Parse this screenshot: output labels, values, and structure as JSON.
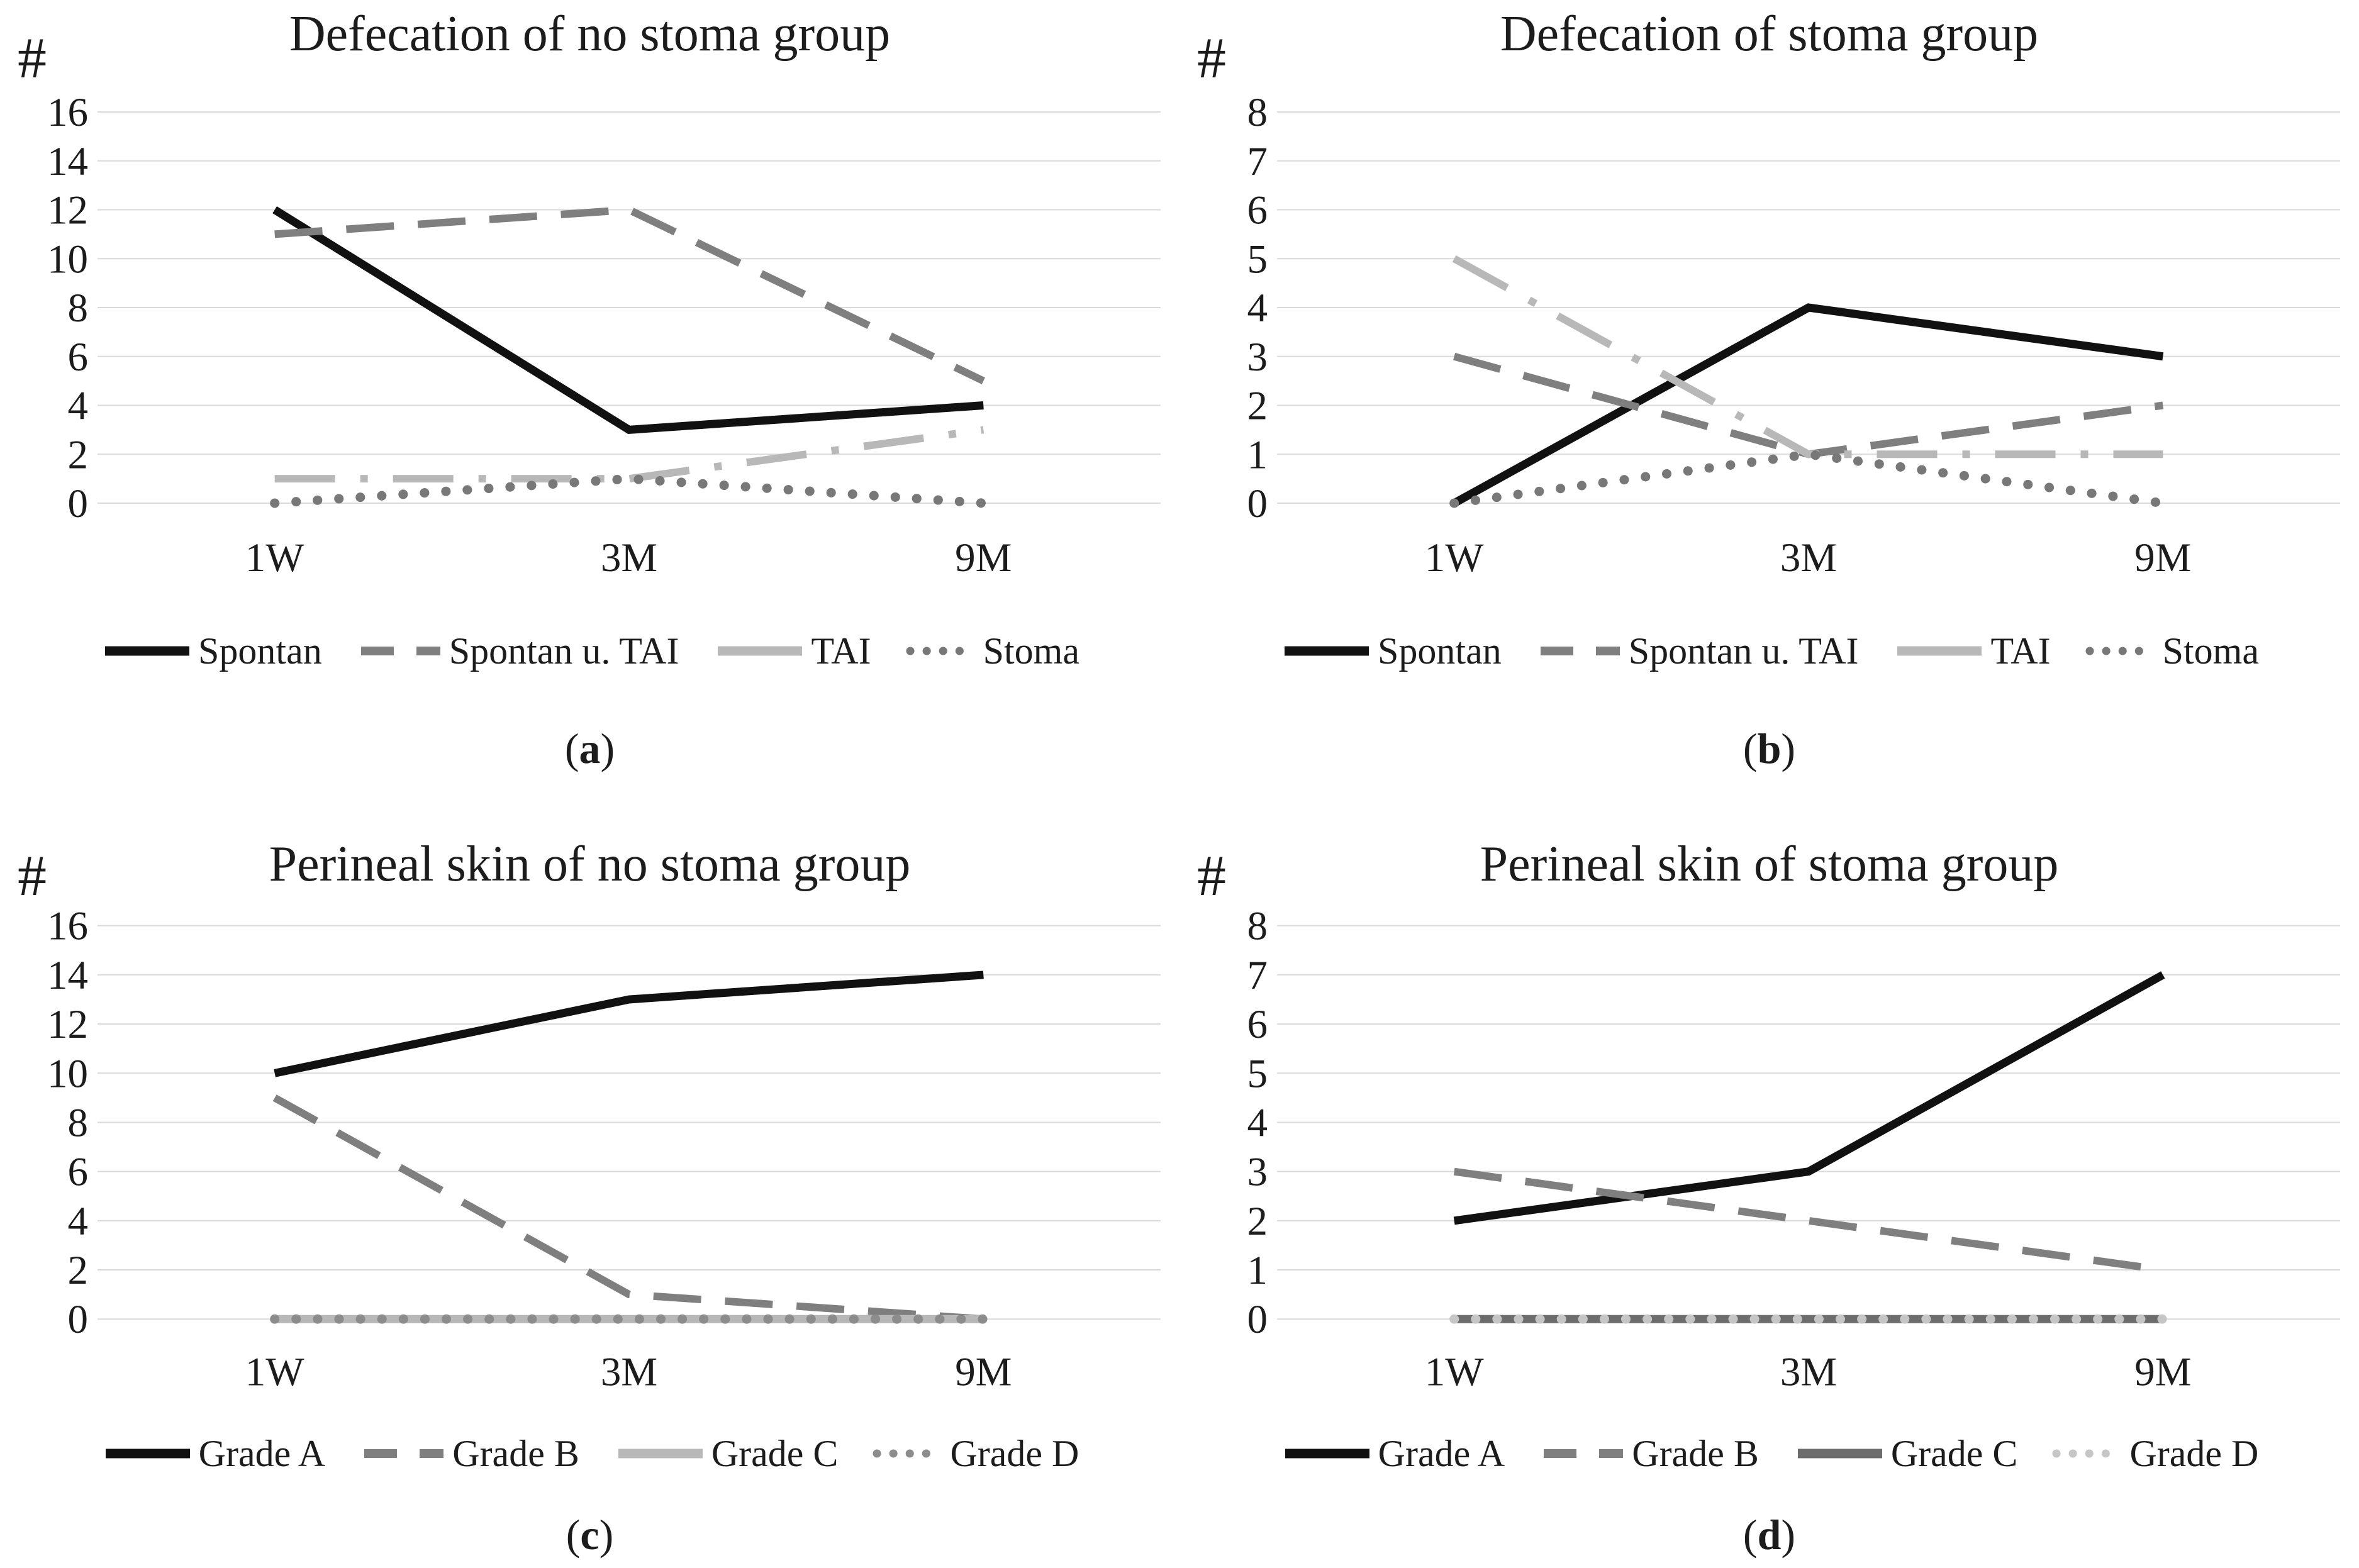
{
  "colors": {
    "background": "#ffffff",
    "gridline": "#dadada",
    "text": "#1c1c1c",
    "black_series": "#111111",
    "dark_gray_series": "#7f7f7f",
    "light_gray_series": "#b8b8b8",
    "dotted_series": "#787878"
  },
  "chart_data": [
    {
      "id": "a",
      "type": "line",
      "title": "Defecation of no stoma group",
      "y_symbol": "#",
      "caption": {
        "open": "(",
        "letter": "a",
        "close": ")"
      },
      "categories": [
        "1W",
        "3M",
        "9M"
      ],
      "ylim": [
        0,
        16
      ],
      "ytick_step": 2,
      "yticks": [
        16,
        14,
        12,
        10,
        8,
        6,
        4,
        2,
        0
      ],
      "grid": "on",
      "legend_position": "bottom",
      "series": [
        {
          "name": "Spontan",
          "values": [
            12,
            3,
            4
          ],
          "color": "#111111",
          "style": "solid"
        },
        {
          "name": "Spontan u. TAI",
          "values": [
            11,
            12,
            5
          ],
          "color": "#7f7f7f",
          "style": "dashed"
        },
        {
          "name": "TAI",
          "values": [
            1,
            1,
            3
          ],
          "color": "#b8b8b8",
          "style": "dashdot",
          "legend_style": "solid"
        },
        {
          "name": "Stoma",
          "values": [
            0,
            1,
            0
          ],
          "color": "#787878",
          "style": "dotted"
        }
      ]
    },
    {
      "id": "b",
      "type": "line",
      "title": "Defecation of stoma group",
      "y_symbol": "#",
      "caption": {
        "open": "(",
        "letter": "b",
        "close": ")"
      },
      "categories": [
        "1W",
        "3M",
        "9M"
      ],
      "ylim": [
        0,
        8
      ],
      "ytick_step": 1,
      "yticks": [
        8,
        7,
        6,
        5,
        4,
        3,
        2,
        1,
        0
      ],
      "grid": "on",
      "legend_position": "bottom",
      "series": [
        {
          "name": "Spontan",
          "values": [
            0,
            4,
            3
          ],
          "color": "#111111",
          "style": "solid"
        },
        {
          "name": "Spontan u. TAI",
          "values": [
            3,
            1,
            2
          ],
          "color": "#7f7f7f",
          "style": "dashed"
        },
        {
          "name": "TAI",
          "values": [
            5,
            1,
            1
          ],
          "color": "#b8b8b8",
          "style": "dashdot",
          "legend_style": "solid"
        },
        {
          "name": "Stoma",
          "values": [
            0,
            1,
            0
          ],
          "color": "#787878",
          "style": "dotted"
        }
      ]
    },
    {
      "id": "c",
      "type": "line",
      "title": "Perineal skin of no stoma group",
      "y_symbol": "#",
      "caption": {
        "open": "(",
        "letter": "c",
        "close": ")"
      },
      "categories": [
        "1W",
        "3M",
        "9M"
      ],
      "ylim": [
        0,
        16
      ],
      "ytick_step": 2,
      "yticks": [
        16,
        14,
        12,
        10,
        8,
        6,
        4,
        2,
        0
      ],
      "grid": "on",
      "legend_position": "bottom",
      "series": [
        {
          "name": "Grade A",
          "values": [
            10,
            13,
            14
          ],
          "color": "#111111",
          "style": "solid"
        },
        {
          "name": "Grade B",
          "values": [
            9,
            1,
            0
          ],
          "color": "#7f7f7f",
          "style": "dashed"
        },
        {
          "name": "Grade C",
          "values": [
            0,
            0,
            0
          ],
          "color": "#b8b8b8",
          "style": "solid"
        },
        {
          "name": "Grade D",
          "values": [
            0,
            0,
            0
          ],
          "color": "#8c8c8c",
          "style": "dotted"
        }
      ]
    },
    {
      "id": "d",
      "type": "line",
      "title": "Perineal skin of stoma group",
      "y_symbol": "#",
      "caption": {
        "open": "(",
        "letter": "d",
        "close": ")"
      },
      "categories": [
        "1W",
        "3M",
        "9M"
      ],
      "ylim": [
        0,
        8
      ],
      "ytick_step": 1,
      "yticks": [
        8,
        7,
        6,
        5,
        4,
        3,
        2,
        1,
        0
      ],
      "grid": "on",
      "legend_position": "bottom",
      "series": [
        {
          "name": "Grade A",
          "values": [
            2,
            3,
            7
          ],
          "color": "#111111",
          "style": "solid"
        },
        {
          "name": "Grade B",
          "values": [
            3,
            2,
            1
          ],
          "color": "#7f7f7f",
          "style": "dashed"
        },
        {
          "name": "Grade C",
          "values": [
            0,
            0,
            0
          ],
          "color": "#6d6d6d",
          "style": "solid"
        },
        {
          "name": "Grade D",
          "values": [
            0,
            0,
            0
          ],
          "color": "#c6c6c6",
          "style": "dotted"
        }
      ]
    }
  ]
}
